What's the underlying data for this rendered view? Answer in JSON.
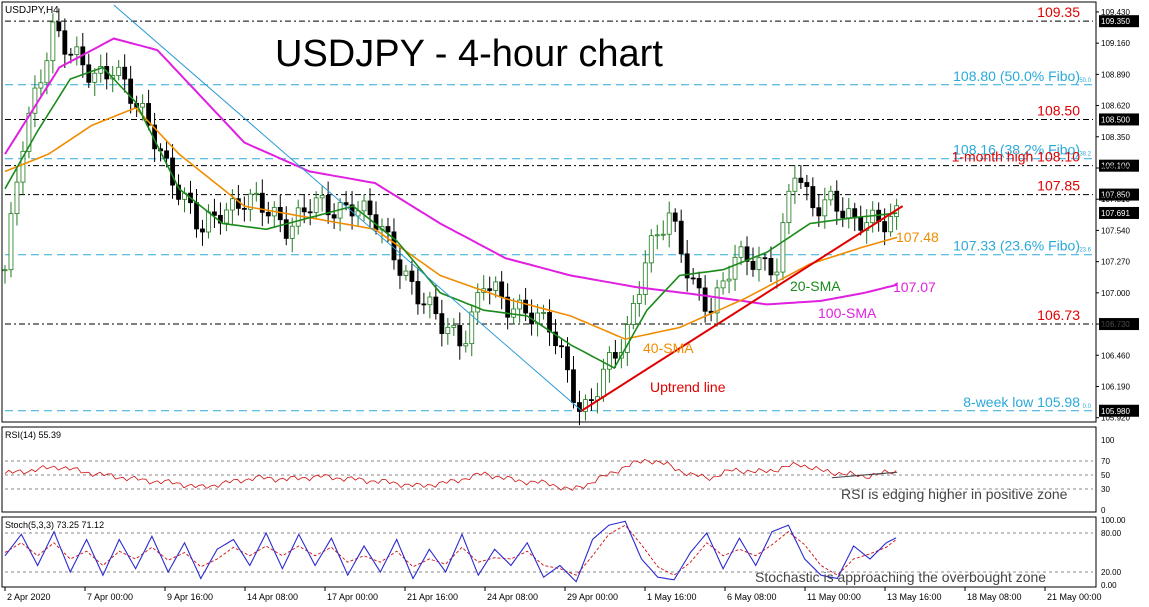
{
  "colors": {
    "price_up": "#1f7a1f",
    "price_down": "#000000",
    "sma20": "#1a8a1a",
    "sma40": "#f08c00",
    "sma100": "#e020e0",
    "level_red": "#e00000",
    "fibo_cyan": "#2aa9d9",
    "rsi": "#d01010",
    "stoch_main": "#2b2bd0",
    "stoch_signal": "#d01010",
    "trend_down": "#2a9bd4"
  },
  "chart_data": {
    "type": "line",
    "symbol_label": "USDJPY,H4",
    "title": "USDJPY - 4-hour chart",
    "price_axis": {
      "ylim": [
        105.9,
        109.49
      ],
      "ticks": [
        "109.430",
        "109.160",
        "108.890",
        "108.620",
        "108.350",
        "108.080",
        "107.810",
        "107.540",
        "107.270",
        "107.000",
        "106.730",
        "106.460",
        "106.190",
        "105.920"
      ]
    },
    "time_axis": {
      "labels": [
        "2 Apr 2020",
        "7 Apr 00:00",
        "9 Apr 16:00",
        "14 Apr 08:00",
        "17 Apr 00:00",
        "21 Apr 16:00",
        "24 Apr 08:00",
        "29 Apr 00:00",
        "1 May 16:00",
        "6 May 08:00",
        "11 May 00:00",
        "13 May 16:00",
        "18 May 08:00",
        "21 May 00:00"
      ]
    },
    "x_range": [
      0,
      100
    ],
    "price_close_keypoints": [
      [
        0,
        107.2
      ],
      [
        1.5,
        108.2
      ],
      [
        3,
        108.8
      ],
      [
        4.5,
        109.35
      ],
      [
        6,
        109.05
      ],
      [
        8,
        108.85
      ],
      [
        10,
        109.0
      ],
      [
        12,
        108.6
      ],
      [
        14,
        108.3
      ],
      [
        16,
        107.9
      ],
      [
        18,
        107.5
      ],
      [
        20,
        107.75
      ],
      [
        22,
        107.8
      ],
      [
        24,
        107.7
      ],
      [
        26,
        107.6
      ],
      [
        28,
        107.75
      ],
      [
        30,
        107.7
      ],
      [
        32,
        107.8
      ],
      [
        34,
        107.6
      ],
      [
        36,
        107.3
      ],
      [
        38,
        107.0
      ],
      [
        40,
        106.7
      ],
      [
        42,
        106.6
      ],
      [
        44,
        107.1
      ],
      [
        46,
        106.85
      ],
      [
        48,
        106.9
      ],
      [
        50,
        106.7
      ],
      [
        52,
        106.2
      ],
      [
        53,
        105.98
      ],
      [
        55,
        106.3
      ],
      [
        57,
        106.55
      ],
      [
        59,
        107.4
      ],
      [
        61,
        107.65
      ],
      [
        63,
        107.1
      ],
      [
        65,
        106.9
      ],
      [
        67,
        107.25
      ],
      [
        69,
        107.3
      ],
      [
        71,
        107.25
      ],
      [
        72.5,
        108.05
      ],
      [
        74,
        107.75
      ],
      [
        76,
        107.85
      ],
      [
        78,
        107.55
      ],
      [
        80,
        107.65
      ],
      [
        82,
        107.69
      ]
    ],
    "sma20_keypoints": [
      [
        0,
        107.9
      ],
      [
        3,
        108.4
      ],
      [
        6,
        108.85
      ],
      [
        9,
        108.95
      ],
      [
        12,
        108.65
      ],
      [
        16,
        107.9
      ],
      [
        20,
        107.6
      ],
      [
        24,
        107.55
      ],
      [
        28,
        107.65
      ],
      [
        32,
        107.75
      ],
      [
        36,
        107.45
      ],
      [
        40,
        107.0
      ],
      [
        44,
        106.85
      ],
      [
        48,
        106.8
      ],
      [
        52,
        106.55
      ],
      [
        56,
        106.35
      ],
      [
        59,
        106.85
      ],
      [
        62,
        107.15
      ],
      [
        66,
        107.2
      ],
      [
        70,
        107.35
      ],
      [
        74,
        107.6
      ],
      [
        78,
        107.65
      ],
      [
        82,
        107.69
      ]
    ],
    "sma40_keypoints": [
      [
        0,
        108.05
      ],
      [
        4,
        108.2
      ],
      [
        8,
        108.45
      ],
      [
        12,
        108.6
      ],
      [
        16,
        108.2
      ],
      [
        22,
        107.75
      ],
      [
        28,
        107.65
      ],
      [
        34,
        107.55
      ],
      [
        40,
        107.15
      ],
      [
        46,
        106.95
      ],
      [
        52,
        106.8
      ],
      [
        57,
        106.6
      ],
      [
        62,
        106.7
      ],
      [
        68,
        106.95
      ],
      [
        74,
        107.25
      ],
      [
        79,
        107.4
      ],
      [
        82,
        107.48
      ]
    ],
    "sma100_keypoints": [
      [
        0,
        108.2
      ],
      [
        5,
        108.95
      ],
      [
        10,
        109.2
      ],
      [
        14,
        109.1
      ],
      [
        18,
        108.7
      ],
      [
        22,
        108.3
      ],
      [
        28,
        108.05
      ],
      [
        34,
        107.95
      ],
      [
        40,
        107.6
      ],
      [
        46,
        107.3
      ],
      [
        52,
        107.15
      ],
      [
        58,
        107.05
      ],
      [
        64,
        106.98
      ],
      [
        70,
        106.9
      ],
      [
        75,
        106.93
      ],
      [
        79,
        107.0
      ],
      [
        82,
        107.07
      ]
    ],
    "uptrend_line": [
      [
        53,
        105.98
      ],
      [
        82.5,
        107.75
      ]
    ],
    "downtrend_line": [
      [
        10,
        109.5
      ],
      [
        53,
        105.98
      ]
    ],
    "levels": [
      {
        "value": 109.35,
        "label": "109.35",
        "axis_label": "109.350",
        "kind": "resistance"
      },
      {
        "value": 108.8,
        "label": "108.80 (50.0% Fibo)",
        "axis_label": "",
        "kind": "fibo",
        "fibo_tag": "50.0"
      },
      {
        "value": 108.5,
        "label": "108.50",
        "axis_label": "108.500",
        "kind": "resistance"
      },
      {
        "value": 108.16,
        "label": "108.16 (38.2% Fibo)",
        "axis_label": "",
        "kind": "fibo",
        "fibo_tag": "38.2"
      },
      {
        "value": 108.1,
        "label": "1-month high 108.10",
        "axis_label": "108.100",
        "kind": "resistance"
      },
      {
        "value": 107.85,
        "label": "107.85",
        "axis_label": "107.850",
        "kind": "resistance"
      },
      {
        "value": 107.33,
        "label": "107.33 (23.6% Fibo)",
        "axis_label": "",
        "kind": "fibo",
        "fibo_tag": "23.6"
      },
      {
        "value": 106.73,
        "label": "106.73",
        "axis_label": "106.730",
        "kind": "support"
      },
      {
        "value": 105.98,
        "label": "8-week low 105.98",
        "axis_label": "105.980",
        "kind": "fibo",
        "fibo_tag": "0.0"
      }
    ],
    "current_price": {
      "value": 107.691,
      "label": "107.691"
    },
    "annotations": {
      "sma40_value": "107.48",
      "sma100_value": "107.07",
      "sma20_label": "20-SMA",
      "sma40_label": "40-SMA",
      "sma100_label": "100-SMA",
      "uptrend_label": "Uptrend line"
    },
    "rsi": {
      "header": "RSI(14) 55.39",
      "ylim": [
        0,
        100
      ],
      "ticks": [
        "100",
        "70",
        "50",
        "30",
        "0"
      ],
      "keypoints": [
        [
          0,
          52
        ],
        [
          3,
          58
        ],
        [
          5,
          62
        ],
        [
          7,
          55
        ],
        [
          10,
          48
        ],
        [
          13,
          42
        ],
        [
          16,
          38
        ],
        [
          18,
          32
        ],
        [
          20,
          38
        ],
        [
          23,
          46
        ],
        [
          26,
          44
        ],
        [
          29,
          48
        ],
        [
          32,
          44
        ],
        [
          35,
          40
        ],
        [
          38,
          34
        ],
        [
          41,
          40
        ],
        [
          44,
          52
        ],
        [
          47,
          42
        ],
        [
          50,
          38
        ],
        [
          52,
          28
        ],
        [
          54,
          40
        ],
        [
          57,
          62
        ],
        [
          59,
          72
        ],
        [
          61,
          64
        ],
        [
          63,
          50
        ],
        [
          65,
          46
        ],
        [
          67,
          58
        ],
        [
          69,
          54
        ],
        [
          71,
          58
        ],
        [
          73,
          66
        ],
        [
          75,
          56
        ],
        [
          77,
          52
        ],
        [
          79,
          48
        ],
        [
          82,
          55.39
        ]
      ],
      "note": "RSI is edging higher in positive zone"
    },
    "stochastic": {
      "header": "Stoch(5,3,3) 73.25 71.12",
      "ylim": [
        0,
        100
      ],
      "ticks": [
        "100.00",
        "80.00",
        "20.00",
        "0.00"
      ],
      "main_keypoints": [
        [
          0,
          45
        ],
        [
          1.5,
          78
        ],
        [
          3,
          30
        ],
        [
          4.5,
          82
        ],
        [
          6,
          20
        ],
        [
          7.5,
          70
        ],
        [
          9,
          15
        ],
        [
          10.5,
          70
        ],
        [
          12,
          25
        ],
        [
          13.5,
          75
        ],
        [
          15,
          20
        ],
        [
          16.5,
          65
        ],
        [
          18,
          10
        ],
        [
          19.5,
          55
        ],
        [
          21,
          70
        ],
        [
          22.5,
          30
        ],
        [
          24,
          80
        ],
        [
          25.5,
          25
        ],
        [
          27,
          78
        ],
        [
          28.5,
          30
        ],
        [
          30,
          72
        ],
        [
          31.5,
          15
        ],
        [
          33,
          60
        ],
        [
          34.5,
          20
        ],
        [
          36,
          70
        ],
        [
          37.5,
          10
        ],
        [
          39,
          55
        ],
        [
          40.5,
          20
        ],
        [
          42,
          78
        ],
        [
          43.5,
          15
        ],
        [
          45,
          55
        ],
        [
          46.5,
          30
        ],
        [
          48,
          65
        ],
        [
          49.5,
          12
        ],
        [
          51,
          30
        ],
        [
          52.5,
          5
        ],
        [
          54,
          70
        ],
        [
          55.5,
          92
        ],
        [
          57,
          98
        ],
        [
          58.5,
          40
        ],
        [
          60,
          12
        ],
        [
          61.5,
          8
        ],
        [
          63,
          50
        ],
        [
          64.5,
          80
        ],
        [
          66,
          25
        ],
        [
          67.5,
          72
        ],
        [
          69,
          30
        ],
        [
          70.5,
          82
        ],
        [
          72,
          92
        ],
        [
          73.5,
          40
        ],
        [
          75,
          15
        ],
        [
          76.5,
          10
        ],
        [
          78,
          60
        ],
        [
          79.5,
          40
        ],
        [
          81,
          65
        ],
        [
          82,
          73.25
        ]
      ],
      "signal_keypoints": [
        [
          0,
          50
        ],
        [
          1.5,
          65
        ],
        [
          3,
          45
        ],
        [
          4.5,
          65
        ],
        [
          6,
          40
        ],
        [
          7.5,
          52
        ],
        [
          9,
          30
        ],
        [
          10.5,
          52
        ],
        [
          12,
          40
        ],
        [
          13.5,
          58
        ],
        [
          15,
          38
        ],
        [
          16.5,
          50
        ],
        [
          18,
          28
        ],
        [
          19.5,
          40
        ],
        [
          21,
          58
        ],
        [
          22.5,
          45
        ],
        [
          24,
          60
        ],
        [
          25.5,
          45
        ],
        [
          27,
          60
        ],
        [
          28.5,
          45
        ],
        [
          30,
          58
        ],
        [
          31.5,
          35
        ],
        [
          33,
          45
        ],
        [
          34.5,
          35
        ],
        [
          36,
          52
        ],
        [
          37.5,
          28
        ],
        [
          39,
          40
        ],
        [
          40.5,
          32
        ],
        [
          42,
          58
        ],
        [
          43.5,
          35
        ],
        [
          45,
          42
        ],
        [
          46.5,
          40
        ],
        [
          48,
          52
        ],
        [
          49.5,
          30
        ],
        [
          51,
          25
        ],
        [
          52.5,
          15
        ],
        [
          54,
          45
        ],
        [
          55.5,
          78
        ],
        [
          57,
          92
        ],
        [
          58.5,
          62
        ],
        [
          60,
          28
        ],
        [
          61.5,
          15
        ],
        [
          63,
          35
        ],
        [
          64.5,
          65
        ],
        [
          66,
          45
        ],
        [
          67.5,
          55
        ],
        [
          69,
          45
        ],
        [
          70.5,
          62
        ],
        [
          72,
          82
        ],
        [
          73.5,
          62
        ],
        [
          75,
          30
        ],
        [
          76.5,
          15
        ],
        [
          78,
          40
        ],
        [
          79.5,
          48
        ],
        [
          81,
          58
        ],
        [
          82,
          71.12
        ]
      ],
      "note": "Stochastic is approaching the overbought zone"
    }
  }
}
